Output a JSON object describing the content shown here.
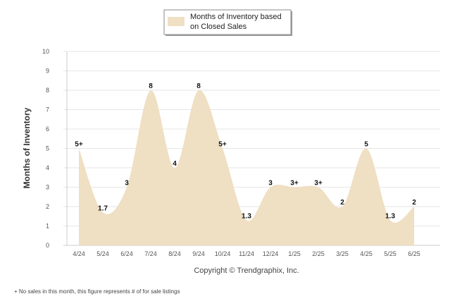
{
  "chart_data": {
    "type": "area",
    "title": "",
    "ylabel": "Months of Inventory",
    "xlabel": "",
    "ylim": [
      0,
      10
    ],
    "yticks": [
      0,
      1,
      2,
      3,
      4,
      5,
      6,
      7,
      8,
      9,
      10
    ],
    "grid": true,
    "legend_position": "top-center",
    "categories": [
      "4/24",
      "5/24",
      "6/24",
      "7/24",
      "8/24",
      "9/24",
      "10/24",
      "11/24",
      "12/24",
      "1/25",
      "2/25",
      "3/25",
      "4/25",
      "5/25",
      "6/25"
    ],
    "series": [
      {
        "name": "Months of Inventory based on Closed Sales",
        "values": [
          5,
          1.7,
          3,
          8,
          4,
          8,
          5,
          1.3,
          3,
          3,
          3,
          2,
          5,
          1.3,
          2
        ],
        "labels": [
          "5+",
          "1.7",
          "3",
          "8",
          "4",
          "8",
          "5+",
          "1.3",
          "3",
          "3+",
          "3+",
          "2",
          "5",
          "1.3",
          "2"
        ],
        "color": "#efdfc3"
      }
    ],
    "legend_lines": [
      "Months of Inventory based",
      "on Closed Sales"
    ],
    "copyright": "Copyright © Trendgraphix, Inc.",
    "footnote": "+  No sales in this month, this figure represents # of for sale listings"
  }
}
